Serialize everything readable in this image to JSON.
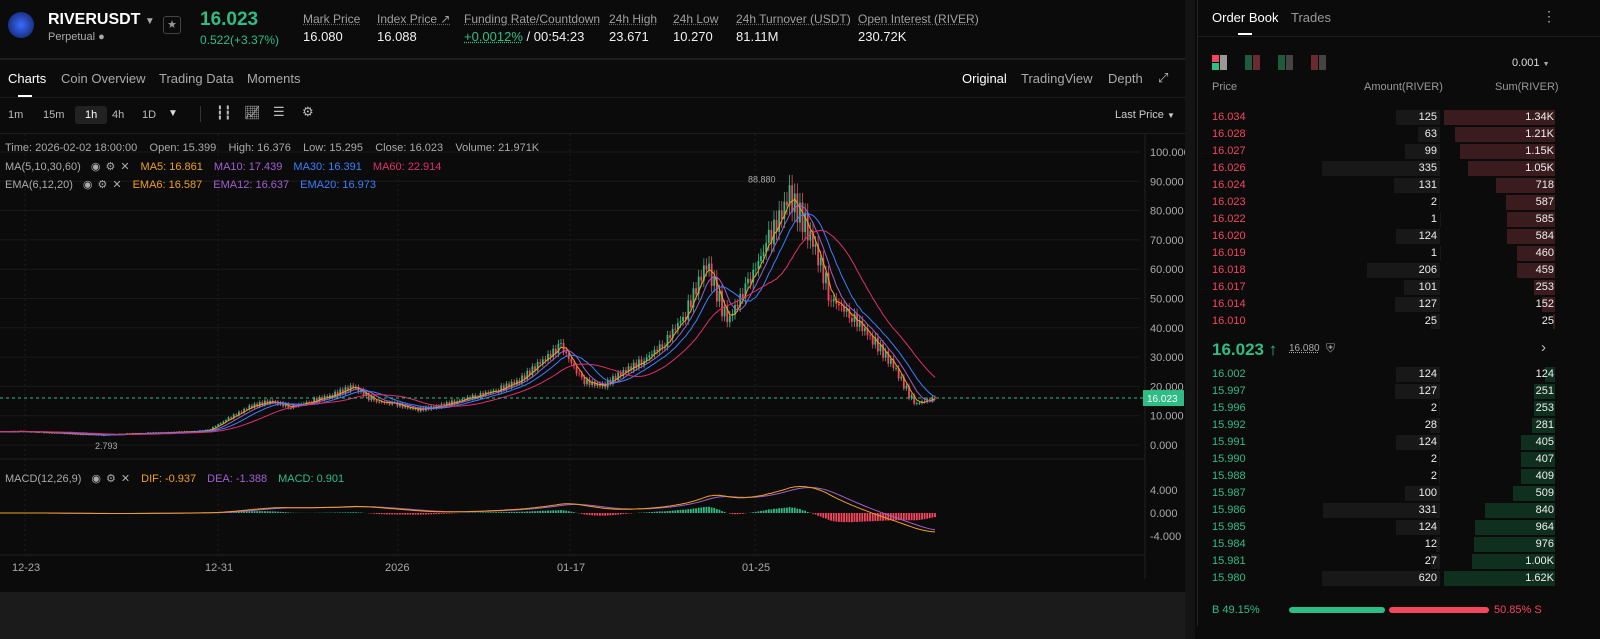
{
  "header": {
    "symbol": "RIVERUSDT",
    "type": "Perpetual",
    "last_price": "16.023",
    "change": "0.522(+3.37%)",
    "stats": [
      {
        "label": "Mark Price",
        "value": "16.080"
      },
      {
        "label": "Index Price ↗",
        "value": "16.088"
      },
      {
        "label": "Funding Rate/Countdown",
        "value": "+0.0012%",
        "value2": " / 00:54:23"
      },
      {
        "label": "24h High",
        "value": "23.671"
      },
      {
        "label": "24h Low",
        "value": "10.270"
      },
      {
        "label": "24h Turnover (USDT)",
        "value": "81.11M"
      },
      {
        "label": "Open Interest (RIVER)",
        "value": "230.72K"
      }
    ]
  },
  "tabs": [
    "Charts",
    "Coin Overview",
    "Trading Data",
    "Moments"
  ],
  "chart_modes": [
    "Original",
    "TradingView",
    "Depth"
  ],
  "timeframes": [
    "1m",
    "15m",
    "1h",
    "4h",
    "1D"
  ],
  "active_timeframe": "1h",
  "price_type": "Last Price",
  "ohlc": {
    "time": "Time: 2026-02-02 18:00:00",
    "open": "Open: 15.399",
    "high": "High: 16.376",
    "low": "Low: 15.295",
    "close": "Close: 16.023",
    "volume": "Volume: 21.971K"
  },
  "ma": {
    "label": "MA(5,10,30,60)",
    "v": [
      {
        "t": "MA5: 16.861",
        "c": "#f0a020"
      },
      {
        "t": "MA10: 17.439",
        "c": "#a060d0"
      },
      {
        "t": "MA30: 16.391",
        "c": "#3a80ff"
      },
      {
        "t": "MA60: 22.914",
        "c": "#e0306a"
      }
    ]
  },
  "ema": {
    "label": "EMA(6,12,20)",
    "v": [
      {
        "t": "EMA6: 16.587",
        "c": "#f0a020"
      },
      {
        "t": "EMA12: 16.637",
        "c": "#a060d0"
      },
      {
        "t": "EMA20: 16.973",
        "c": "#3a80ff"
      }
    ]
  },
  "macd": {
    "label": "MACD(12,26,9)",
    "v": [
      {
        "t": "DIF: -0.937",
        "c": "#f0a020"
      },
      {
        "t": "DEA: -1.388",
        "c": "#a060d0"
      },
      {
        "t": "MACD: 0.901",
        "c": "#2ebd85"
      }
    ]
  },
  "chart_data": {
    "type": "candlestick",
    "closes": [
      4.5,
      4.6,
      4.3,
      4.0,
      3.6,
      3.4,
      3.8,
      4.0,
      4.2,
      4.5,
      5.0,
      9,
      13,
      15,
      13,
      15,
      17,
      20,
      15,
      14,
      12,
      13,
      15,
      17,
      19,
      22,
      28,
      34,
      22,
      20,
      25,
      29,
      35,
      45,
      62,
      42,
      55,
      70,
      85,
      72,
      50,
      44,
      36,
      27,
      14,
      16
    ],
    "x_ticks": [
      "12-23",
      "12-31",
      "2026",
      "01-17",
      "01-25"
    ],
    "y_ticks": [
      "100.000",
      "90.000",
      "80.000",
      "70.000",
      "60.000",
      "50.000",
      "40.000",
      "30.000",
      "20.000",
      "10.000",
      "0.000"
    ],
    "ylim": [
      0,
      100
    ],
    "macd_ticks": [
      "4.000",
      "0.000",
      "-4.000"
    ],
    "high_label": "88.880",
    "low_label": "2.793",
    "current_label": "16.023"
  },
  "orderbook": {
    "tabs": [
      "Order Book",
      "Trades"
    ],
    "precision": "0.001",
    "headers": [
      "Price",
      "Amount(RIVER)",
      "Sum(RIVER)"
    ],
    "asks": [
      [
        "16.034",
        "125",
        "1.34K"
      ],
      [
        "16.028",
        "63",
        "1.21K"
      ],
      [
        "16.027",
        "99",
        "1.15K"
      ],
      [
        "16.026",
        "335",
        "1.05K"
      ],
      [
        "16.024",
        "131",
        "718"
      ],
      [
        "16.023",
        "2",
        "587"
      ],
      [
        "16.022",
        "1",
        "585"
      ],
      [
        "16.020",
        "124",
        "584"
      ],
      [
        "16.019",
        "1",
        "460"
      ],
      [
        "16.018",
        "206",
        "459"
      ],
      [
        "16.017",
        "101",
        "253"
      ],
      [
        "16.014",
        "127",
        "152"
      ],
      [
        "16.010",
        "25",
        "25"
      ]
    ],
    "mid_price": "16.023 ↑",
    "mark": "16.080",
    "bids": [
      [
        "16.002",
        "124",
        "124"
      ],
      [
        "15.997",
        "127",
        "251"
      ],
      [
        "15.996",
        "2",
        "253"
      ],
      [
        "15.992",
        "28",
        "281"
      ],
      [
        "15.991",
        "124",
        "405"
      ],
      [
        "15.990",
        "2",
        "407"
      ],
      [
        "15.988",
        "2",
        "409"
      ],
      [
        "15.987",
        "100",
        "509"
      ],
      [
        "15.986",
        "331",
        "840"
      ],
      [
        "15.985",
        "124",
        "964"
      ],
      [
        "15.984",
        "12",
        "976"
      ],
      [
        "15.981",
        "27",
        "1.00K"
      ],
      [
        "15.980",
        "620",
        "1.62K"
      ]
    ],
    "buy_pct": "B 49.15%",
    "sell_pct": "50.85% S",
    "buy_ratio": 49.15
  },
  "colors": {
    "up": "#2ebd85",
    "down": "#f6465d"
  }
}
